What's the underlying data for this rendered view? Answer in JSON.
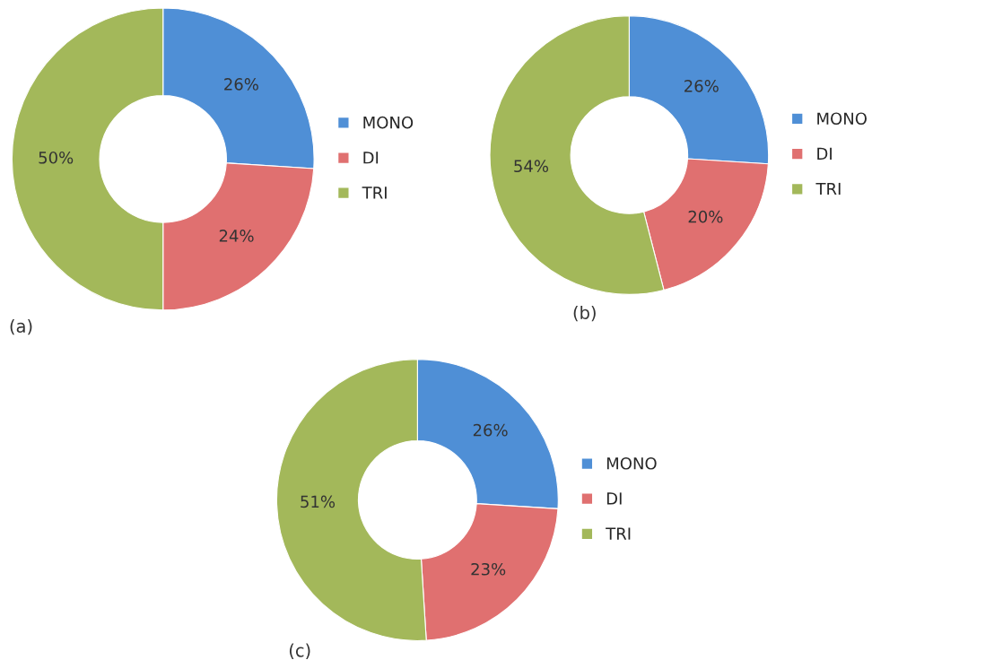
{
  "chart_data": [
    {
      "type": "donut",
      "categories": [
        "MONO",
        "DI",
        "TRI"
      ],
      "values": [
        26,
        24,
        50
      ],
      "colors": [
        "#4f8fd6",
        "#e07070",
        "#a3b85a"
      ],
      "value_labels": [
        "26%",
        "24%",
        "50%"
      ],
      "legend": "right",
      "annotations": [
        "(a)"
      ]
    },
    {
      "type": "donut",
      "categories": [
        "MONO",
        "DI",
        "TRI"
      ],
      "values": [
        26,
        20,
        54
      ],
      "colors": [
        "#4f8fd6",
        "#e07070",
        "#a3b85a"
      ],
      "value_labels": [
        "26%",
        "20%",
        "54%"
      ],
      "legend": "right",
      "annotations": [
        "(b)"
      ]
    },
    {
      "type": "donut",
      "categories": [
        "MONO",
        "DI",
        "TRI"
      ],
      "values": [
        26,
        23,
        51
      ],
      "colors": [
        "#4f8fd6",
        "#e07070",
        "#a3b85a"
      ],
      "value_labels": [
        "26%",
        "23%",
        "51%"
      ],
      "legend": "right",
      "annotations": [
        "(c)"
      ]
    }
  ]
}
